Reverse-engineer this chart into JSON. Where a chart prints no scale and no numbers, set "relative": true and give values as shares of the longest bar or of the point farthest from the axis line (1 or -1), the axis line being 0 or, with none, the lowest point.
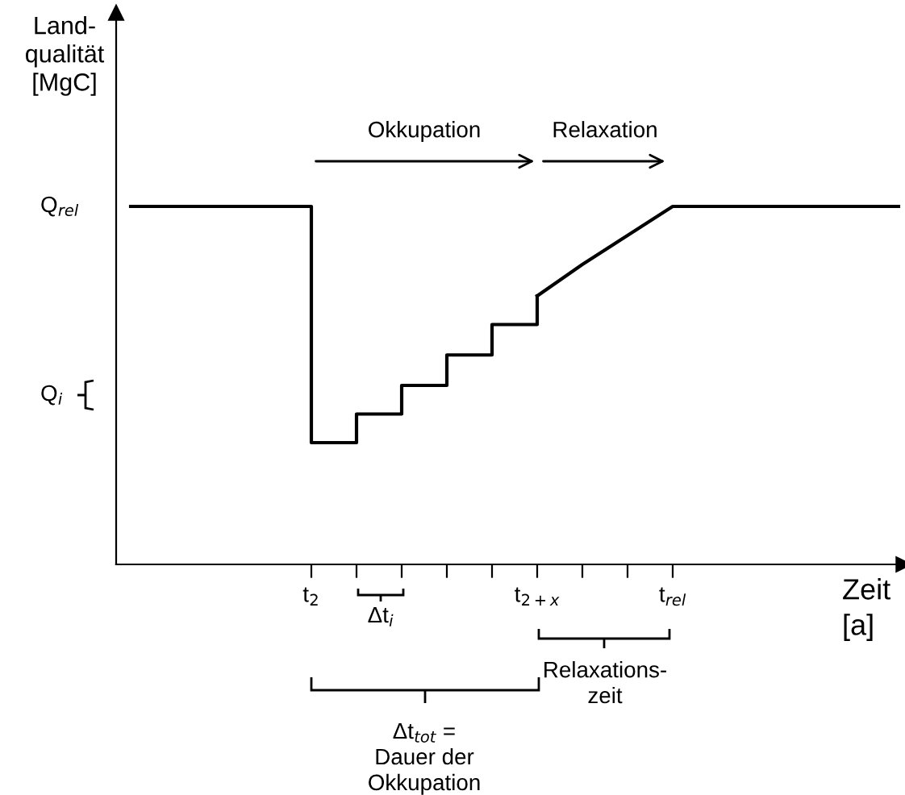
{
  "chart_data": {
    "type": "line",
    "relative": true,
    "ylabel": "Land-\nqualität\n[MgC]",
    "xlabel": "Zeit\n[a]",
    "categories": [
      null,
      null,
      null,
      null,
      "t$_{2}$",
      null,
      null,
      null,
      null,
      "t$_{2+x}$",
      null,
      null,
      "t$_{rel}$",
      null,
      null,
      null,
      null,
      null
    ],
    "series": [
      {
        "type": "step",
        "color": "#000000",
        "values": [
          1,
          1,
          1,
          1,
          0.34,
          0.42,
          0.5,
          0.585,
          0.67,
          0.75,
          null,
          null,
          null,
          null,
          null,
          null,
          null,
          null
        ]
      },
      {
        "color": "#000000",
        "values": [
          null,
          null,
          null,
          null,
          null,
          null,
          null,
          null,
          null,
          0.75,
          0.838,
          0.919,
          1,
          1,
          1,
          1,
          1,
          1
        ]
      }
    ],
    "annotations": [
      "Q$_{rel}$",
      "Q$_{i}$",
      "Okkupation",
      "Relaxation",
      "Δt$_{i}$",
      "Δt$_{tot}$ =\nDauer der\nOkkupation",
      "Relaxations-\nzeit"
    ],
    "grid": false,
    "legend": false,
    "marker": "none",
    "line_style": "solid"
  }
}
